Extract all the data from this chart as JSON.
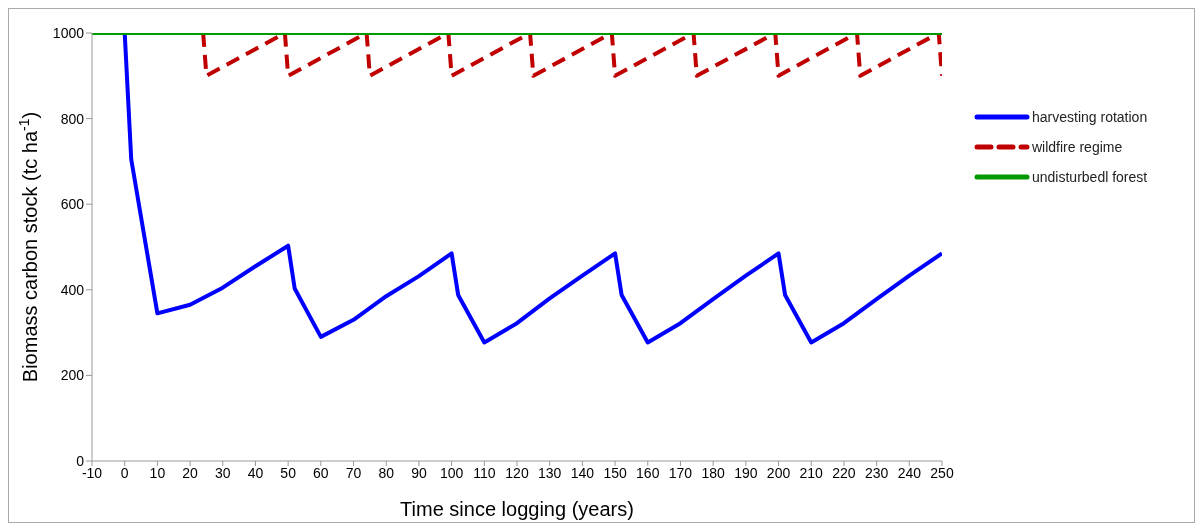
{
  "chart_data": {
    "type": "line",
    "xlabel": "Time since logging (years)",
    "ylabel": "Biomass carbon stock (tc ha$^{-1}$)",
    "xlim": [
      -10,
      250
    ],
    "xticks": [
      -10,
      0,
      10,
      20,
      30,
      40,
      50,
      60,
      70,
      80,
      90,
      100,
      110,
      120,
      130,
      140,
      150,
      160,
      170,
      180,
      190,
      200,
      210,
      220,
      230,
      240,
      250
    ],
    "ylim": [
      0,
      1000
    ],
    "yticks": [
      0,
      200,
      400,
      600,
      800,
      1000
    ],
    "legend": "right",
    "marker": "none",
    "series": [
      {
        "name": "harvesting rotation",
        "color": "#0000ff",
        "line_style": "solid",
        "x": [
          0,
          2,
          10,
          20,
          30,
          40,
          50,
          52,
          60,
          70,
          80,
          90,
          100,
          102,
          110,
          120,
          130,
          140,
          150,
          152,
          160,
          170,
          180,
          190,
          200,
          202,
          210,
          220,
          230,
          240,
          250
        ],
        "values": [
          1000,
          705,
          345,
          365,
          405,
          455,
          503,
          403,
          290,
          330,
          385,
          432,
          485,
          388,
          277,
          322,
          380,
          433,
          485,
          388,
          277,
          322,
          378,
          433,
          485,
          388,
          277,
          322,
          378,
          433,
          485
        ]
      },
      {
        "name": "wildfire regime",
        "color": "#c00000",
        "line_style": "dashed",
        "x": [
          24,
          25,
          49,
          50,
          74,
          75,
          99,
          100,
          124,
          125,
          149,
          150,
          174,
          175,
          199,
          200,
          224,
          225,
          249,
          250
        ],
        "values": [
          1000,
          900,
          1000,
          900,
          1000,
          900,
          1000,
          900,
          1000,
          900,
          1000,
          900,
          1000,
          900,
          1000,
          900,
          1000,
          900,
          1000,
          900
        ]
      },
      {
        "name": "undisturbedl forest",
        "color": "#009900",
        "line_style": "solid",
        "x": [
          -10,
          250
        ],
        "values": [
          1000,
          1000
        ]
      }
    ]
  }
}
